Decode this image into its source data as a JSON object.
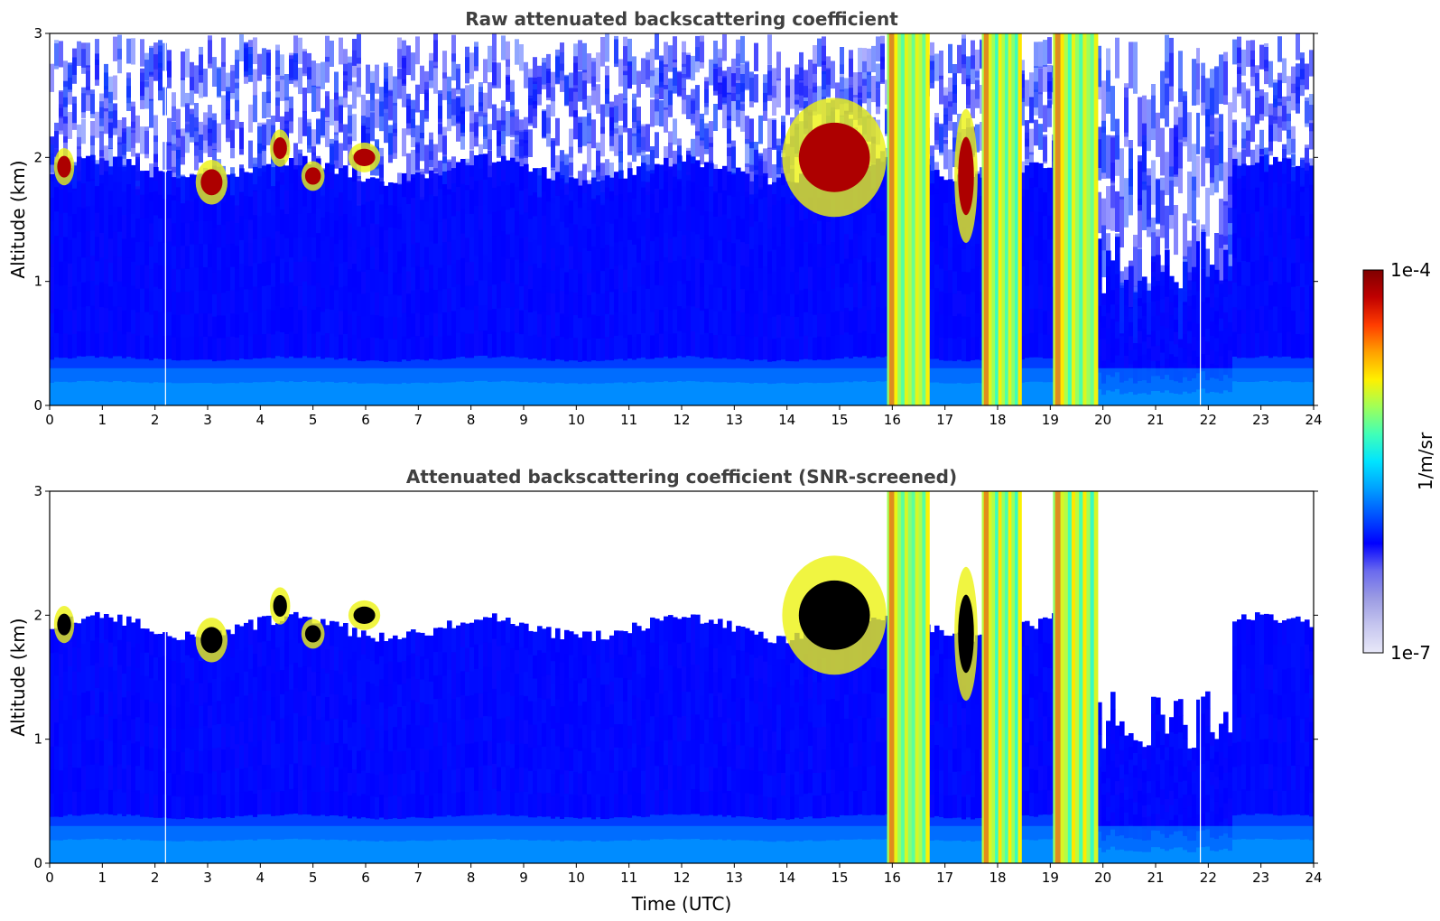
{
  "chart_data": [
    {
      "type": "heatmap",
      "title": "Raw attenuated backscattering coefficient",
      "xlabel": "",
      "ylabel": "Altitude (km)",
      "xlim": [
        0,
        24
      ],
      "ylim": [
        0,
        3
      ],
      "xticks": [
        "0",
        "1",
        "2",
        "3",
        "4",
        "5",
        "6",
        "7",
        "8",
        "9",
        "10",
        "11",
        "12",
        "13",
        "14",
        "15",
        "16",
        "17",
        "18",
        "19",
        "20",
        "21",
        "22",
        "23",
        "24"
      ],
      "yticks": [
        "0",
        "1",
        "2",
        "3"
      ],
      "screened": false,
      "boundary_layer_top_km": 1.9,
      "aerosol_layers": [
        {
          "time_start": 0.1,
          "time_end": 0.45,
          "alt_bottom": 1.8,
          "alt_top": 2.05,
          "intensity": "high"
        },
        {
          "time_start": 2.8,
          "time_end": 3.35,
          "alt_bottom": 1.65,
          "alt_top": 1.95,
          "intensity": "high"
        },
        {
          "time_start": 4.2,
          "time_end": 4.55,
          "alt_bottom": 1.95,
          "alt_top": 2.2,
          "intensity": "high"
        },
        {
          "time_start": 4.8,
          "time_end": 5.2,
          "alt_bottom": 1.75,
          "alt_top": 1.95,
          "intensity": "high"
        },
        {
          "time_start": 5.7,
          "time_end": 6.25,
          "alt_bottom": 1.9,
          "alt_top": 2.1,
          "intensity": "high"
        },
        {
          "time_start": 14.0,
          "time_end": 15.8,
          "alt_bottom": 1.6,
          "alt_top": 2.4,
          "intensity": "high"
        },
        {
          "time_start": 17.2,
          "time_end": 17.6,
          "alt_bottom": 1.4,
          "alt_top": 2.3,
          "intensity": "high"
        }
      ],
      "thick_cloud_periods": [
        {
          "time_start": 15.9,
          "time_end": 16.7,
          "alt_bottom": 0.0,
          "alt_top": 3.0
        },
        {
          "time_start": 17.7,
          "time_end": 18.45,
          "alt_bottom": 0.0,
          "alt_top": 3.0
        },
        {
          "time_start": 19.05,
          "time_end": 19.9,
          "alt_bottom": 0.0,
          "alt_top": 3.0
        }
      ],
      "data_gaps_time": [
        2.2,
        21.85
      ]
    },
    {
      "type": "heatmap",
      "title": "Attenuated backscattering coefficient (SNR-screened)",
      "xlabel": "Time (UTC)",
      "ylabel": "Altitude (km)",
      "xlim": [
        0,
        24
      ],
      "ylim": [
        0,
        3
      ],
      "xticks": [
        "0",
        "1",
        "2",
        "3",
        "4",
        "5",
        "6",
        "7",
        "8",
        "9",
        "10",
        "11",
        "12",
        "13",
        "14",
        "15",
        "16",
        "17",
        "18",
        "19",
        "20",
        "21",
        "22",
        "23",
        "24"
      ],
      "yticks": [
        "0",
        "1",
        "2",
        "3"
      ],
      "screened": true,
      "boundary_layer_top_km": 1.9,
      "aerosol_layers": [
        {
          "time_start": 0.1,
          "time_end": 0.45,
          "alt_bottom": 1.8,
          "alt_top": 2.05,
          "intensity": "high"
        },
        {
          "time_start": 2.8,
          "time_end": 3.35,
          "alt_bottom": 1.65,
          "alt_top": 1.95,
          "intensity": "high"
        },
        {
          "time_start": 4.2,
          "time_end": 4.55,
          "alt_bottom": 1.95,
          "alt_top": 2.2,
          "intensity": "high"
        },
        {
          "time_start": 4.8,
          "time_end": 5.2,
          "alt_bottom": 1.75,
          "alt_top": 1.95,
          "intensity": "high"
        },
        {
          "time_start": 5.7,
          "time_end": 6.25,
          "alt_bottom": 1.9,
          "alt_top": 2.1,
          "intensity": "high"
        },
        {
          "time_start": 14.0,
          "time_end": 15.8,
          "alt_bottom": 1.6,
          "alt_top": 2.4,
          "intensity": "high"
        },
        {
          "time_start": 17.2,
          "time_end": 17.6,
          "alt_bottom": 1.4,
          "alt_top": 2.3,
          "intensity": "high"
        }
      ],
      "thick_cloud_periods": [
        {
          "time_start": 15.9,
          "time_end": 16.7,
          "alt_bottom": 0.0,
          "alt_top": 3.0
        },
        {
          "time_start": 17.7,
          "time_end": 18.45,
          "alt_bottom": 0.0,
          "alt_top": 3.0
        },
        {
          "time_start": 19.05,
          "time_end": 19.9,
          "alt_bottom": 0.0,
          "alt_top": 3.0
        }
      ],
      "data_gaps_time": [
        2.2,
        21.85
      ]
    }
  ],
  "colorbar": {
    "label": "1/m/sr",
    "max_label": "1e-4",
    "min_label": "1e-7",
    "scale": "log",
    "colormap": "jet",
    "colors": [
      "#e8e8f8",
      "#c6c6ef",
      "#9b9be3",
      "#6a6aee",
      "#0000ff",
      "#0050ff",
      "#00a0ff",
      "#00e4ff",
      "#40ffb8",
      "#a0ff58",
      "#fff000",
      "#ffa000",
      "#ff3c00",
      "#c00000",
      "#7f0000"
    ]
  }
}
